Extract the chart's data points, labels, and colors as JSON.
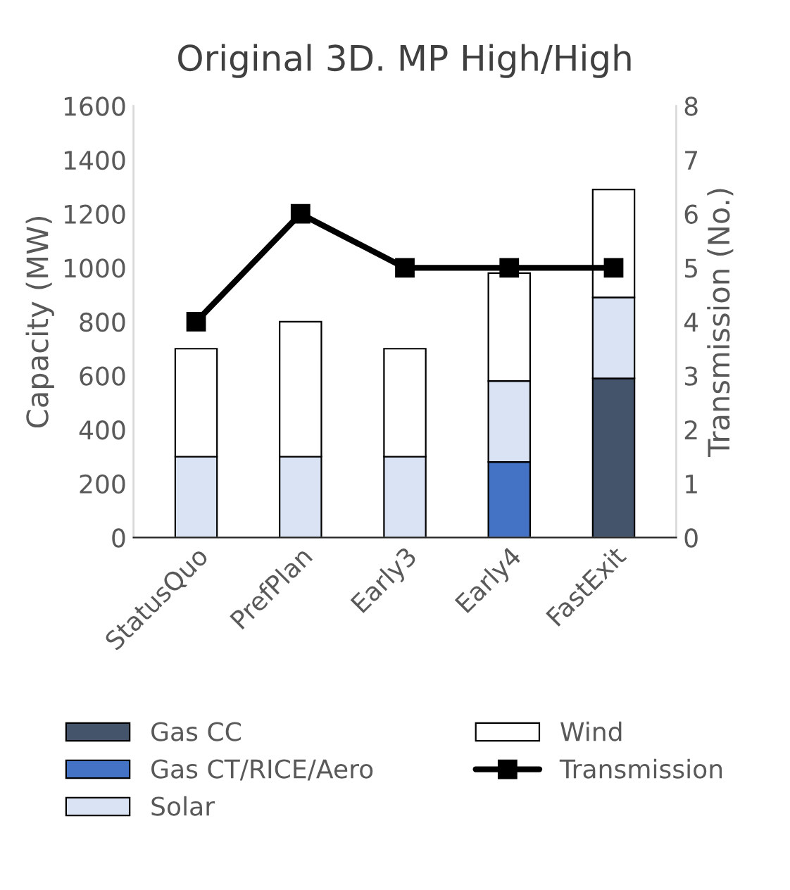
{
  "chart_data": {
    "type": "bar",
    "stacked": true,
    "title": "Original 3D. MP High/High",
    "ylabel": "Capacity (MW)",
    "y2label": "Transmission (No.)",
    "categories": [
      "StatusQuo",
      "PrefPlan",
      "Early3",
      "Early4",
      "FastExit"
    ],
    "series": [
      {
        "name": "Gas CC",
        "color": "#44546a",
        "values": [
          null,
          null,
          null,
          null,
          590
        ]
      },
      {
        "name": "Gas CT/RICE/Aero",
        "color": "#4472c4",
        "values": [
          null,
          null,
          null,
          280,
          null
        ]
      },
      {
        "name": "Solar",
        "color": "#dae3f3",
        "values": [
          300,
          300,
          300,
          300,
          300
        ]
      },
      {
        "name": "Wind",
        "color": "#ffffff",
        "values": [
          400,
          500,
          400,
          400,
          400
        ]
      },
      {
        "name": "Transmission",
        "type": "line",
        "axis": "y2",
        "color": "#000000",
        "marker": "square",
        "values": [
          4,
          6,
          5,
          5,
          5
        ]
      }
    ],
    "ylim": [
      0,
      1600
    ],
    "yticks": [
      0,
      200,
      400,
      600,
      800,
      1000,
      1200,
      1400,
      1600
    ],
    "y2lim": [
      0,
      8
    ],
    "y2ticks": [
      0,
      1,
      2,
      3,
      4,
      5,
      6,
      7,
      8
    ],
    "grid": false,
    "legend": "bottom"
  }
}
